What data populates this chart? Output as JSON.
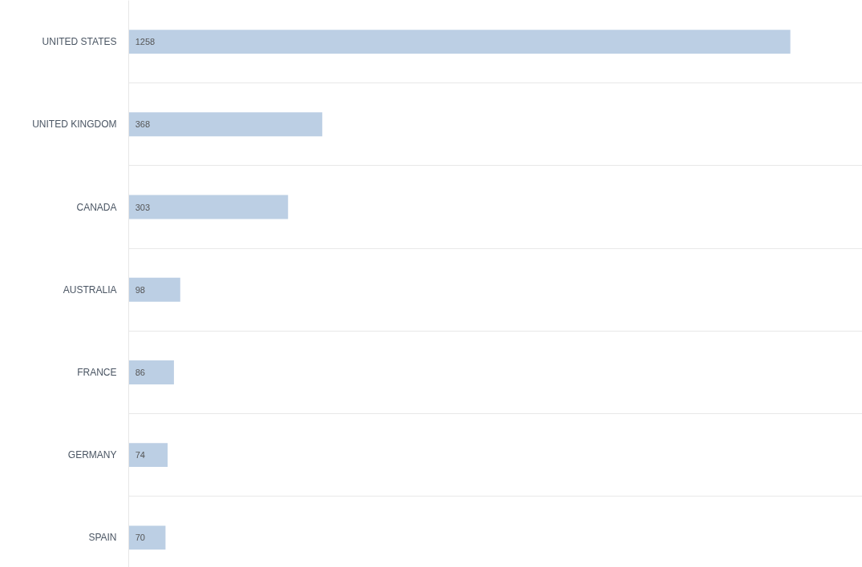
{
  "chart_data": {
    "type": "bar",
    "orientation": "horizontal",
    "categories": [
      "UNITED STATES",
      "UNITED KINGDOM",
      "CANADA",
      "AUSTRALIA",
      "FRANCE",
      "GERMANY",
      "SPAIN"
    ],
    "values": [
      1258,
      368,
      303,
      98,
      86,
      74,
      70
    ],
    "color": "#bccfe4",
    "data_labels": true,
    "xlim": [
      0,
      1395
    ],
    "tick_labels": "y",
    "grid": true
  }
}
